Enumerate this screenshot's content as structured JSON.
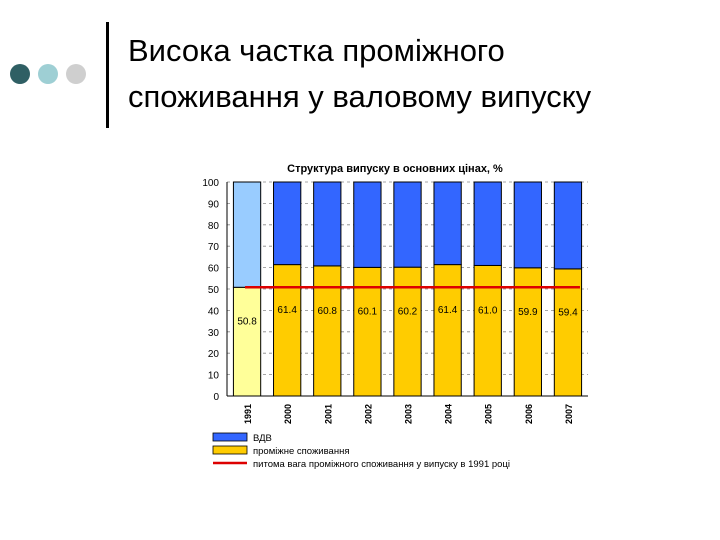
{
  "slide": {
    "title_line1": "Висока частка проміжного",
    "title_line2": "споживання у валовому випуску",
    "dots": [
      "#2f5f64",
      "#9ecfd4",
      "#cfcfcf"
    ]
  },
  "chart_data": {
    "type": "bar",
    "stacked": true,
    "title": "Структура випуску в основних цінах, %",
    "categories": [
      "1991",
      "2000",
      "2001",
      "2002",
      "2003",
      "2004",
      "2005",
      "2006",
      "2007"
    ],
    "ylim": [
      0,
      100
    ],
    "yticks": [
      0,
      10,
      20,
      30,
      40,
      50,
      60,
      70,
      80,
      90,
      100
    ],
    "series": [
      {
        "name": "проміжне споживання",
        "values": [
          50.8,
          61.4,
          60.8,
          60.1,
          60.2,
          61.4,
          61.0,
          59.9,
          59.4
        ],
        "labels": [
          "50.8",
          "61.4",
          "60.8",
          "60.1",
          "60.2",
          "61.4",
          "61.0",
          "59.9",
          "59.4"
        ],
        "color": "#ffcc00",
        "color_first": "#ffff99"
      },
      {
        "name": "ВДВ",
        "values": [
          49.2,
          38.6,
          39.2,
          39.9,
          39.8,
          38.6,
          39.0,
          40.1,
          40.6
        ],
        "color": "#3366ff",
        "color_first": "#99ccff"
      }
    ],
    "reference_line": {
      "name": "питома вага проміжного споживання у випуску в 1991 році",
      "value": 50.8,
      "color": "#dd0000"
    },
    "legend_position": "bottom",
    "grid": "dashed horizontal"
  }
}
